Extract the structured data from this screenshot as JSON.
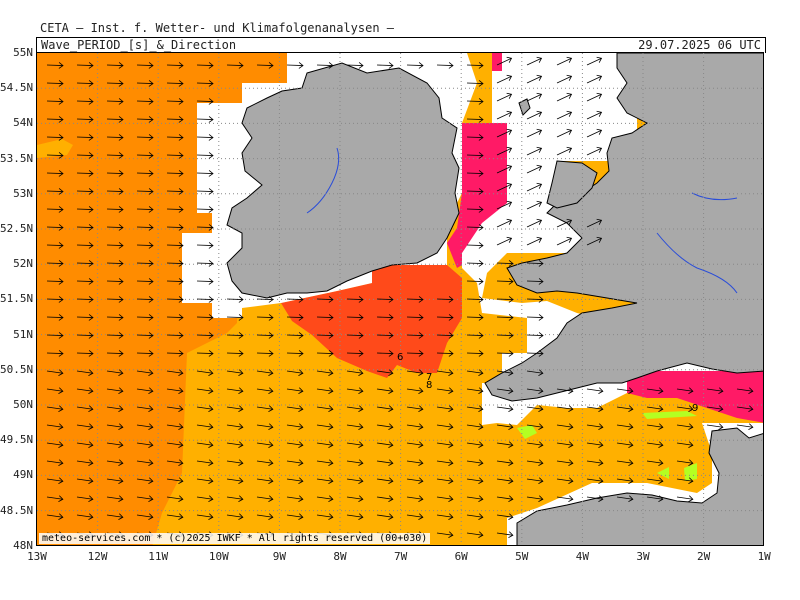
{
  "header": {
    "organization": "CETA — Inst. f. Wetter- und Klimafolgenanalysen —",
    "title": "Wave_PERIOD_[s]_&_Direction",
    "datetime": "29.07.2025 06 UTC"
  },
  "credit": "meteo-services.com * (c)2025 IWKF * All rights reserved (00+030)",
  "axes": {
    "lat_labels": [
      "55N",
      "54.5N",
      "54N",
      "53.5N",
      "53N",
      "52.5N",
      "52N",
      "51.5N",
      "51N",
      "50.5N",
      "50N",
      "49.5N",
      "49N",
      "48.5N",
      "48N"
    ],
    "lon_labels": [
      "13W",
      "12W",
      "11W",
      "10W",
      "9W",
      "8W",
      "7W",
      "6W",
      "5W",
      "4W",
      "3W",
      "2W",
      "1W"
    ]
  },
  "period_labels": [
    "6",
    "7",
    "8",
    "9"
  ],
  "colors": {
    "land": "#a9a9a9",
    "no_data": "#ffffff",
    "period_7s": "#ff8c00",
    "period_6s": "#ffb000",
    "period_8s": "#ff4a1a",
    "period_9s": "#ff1a66",
    "period_low": "#b4ff22",
    "arrow": "#000000",
    "grid": "#888888"
  }
}
